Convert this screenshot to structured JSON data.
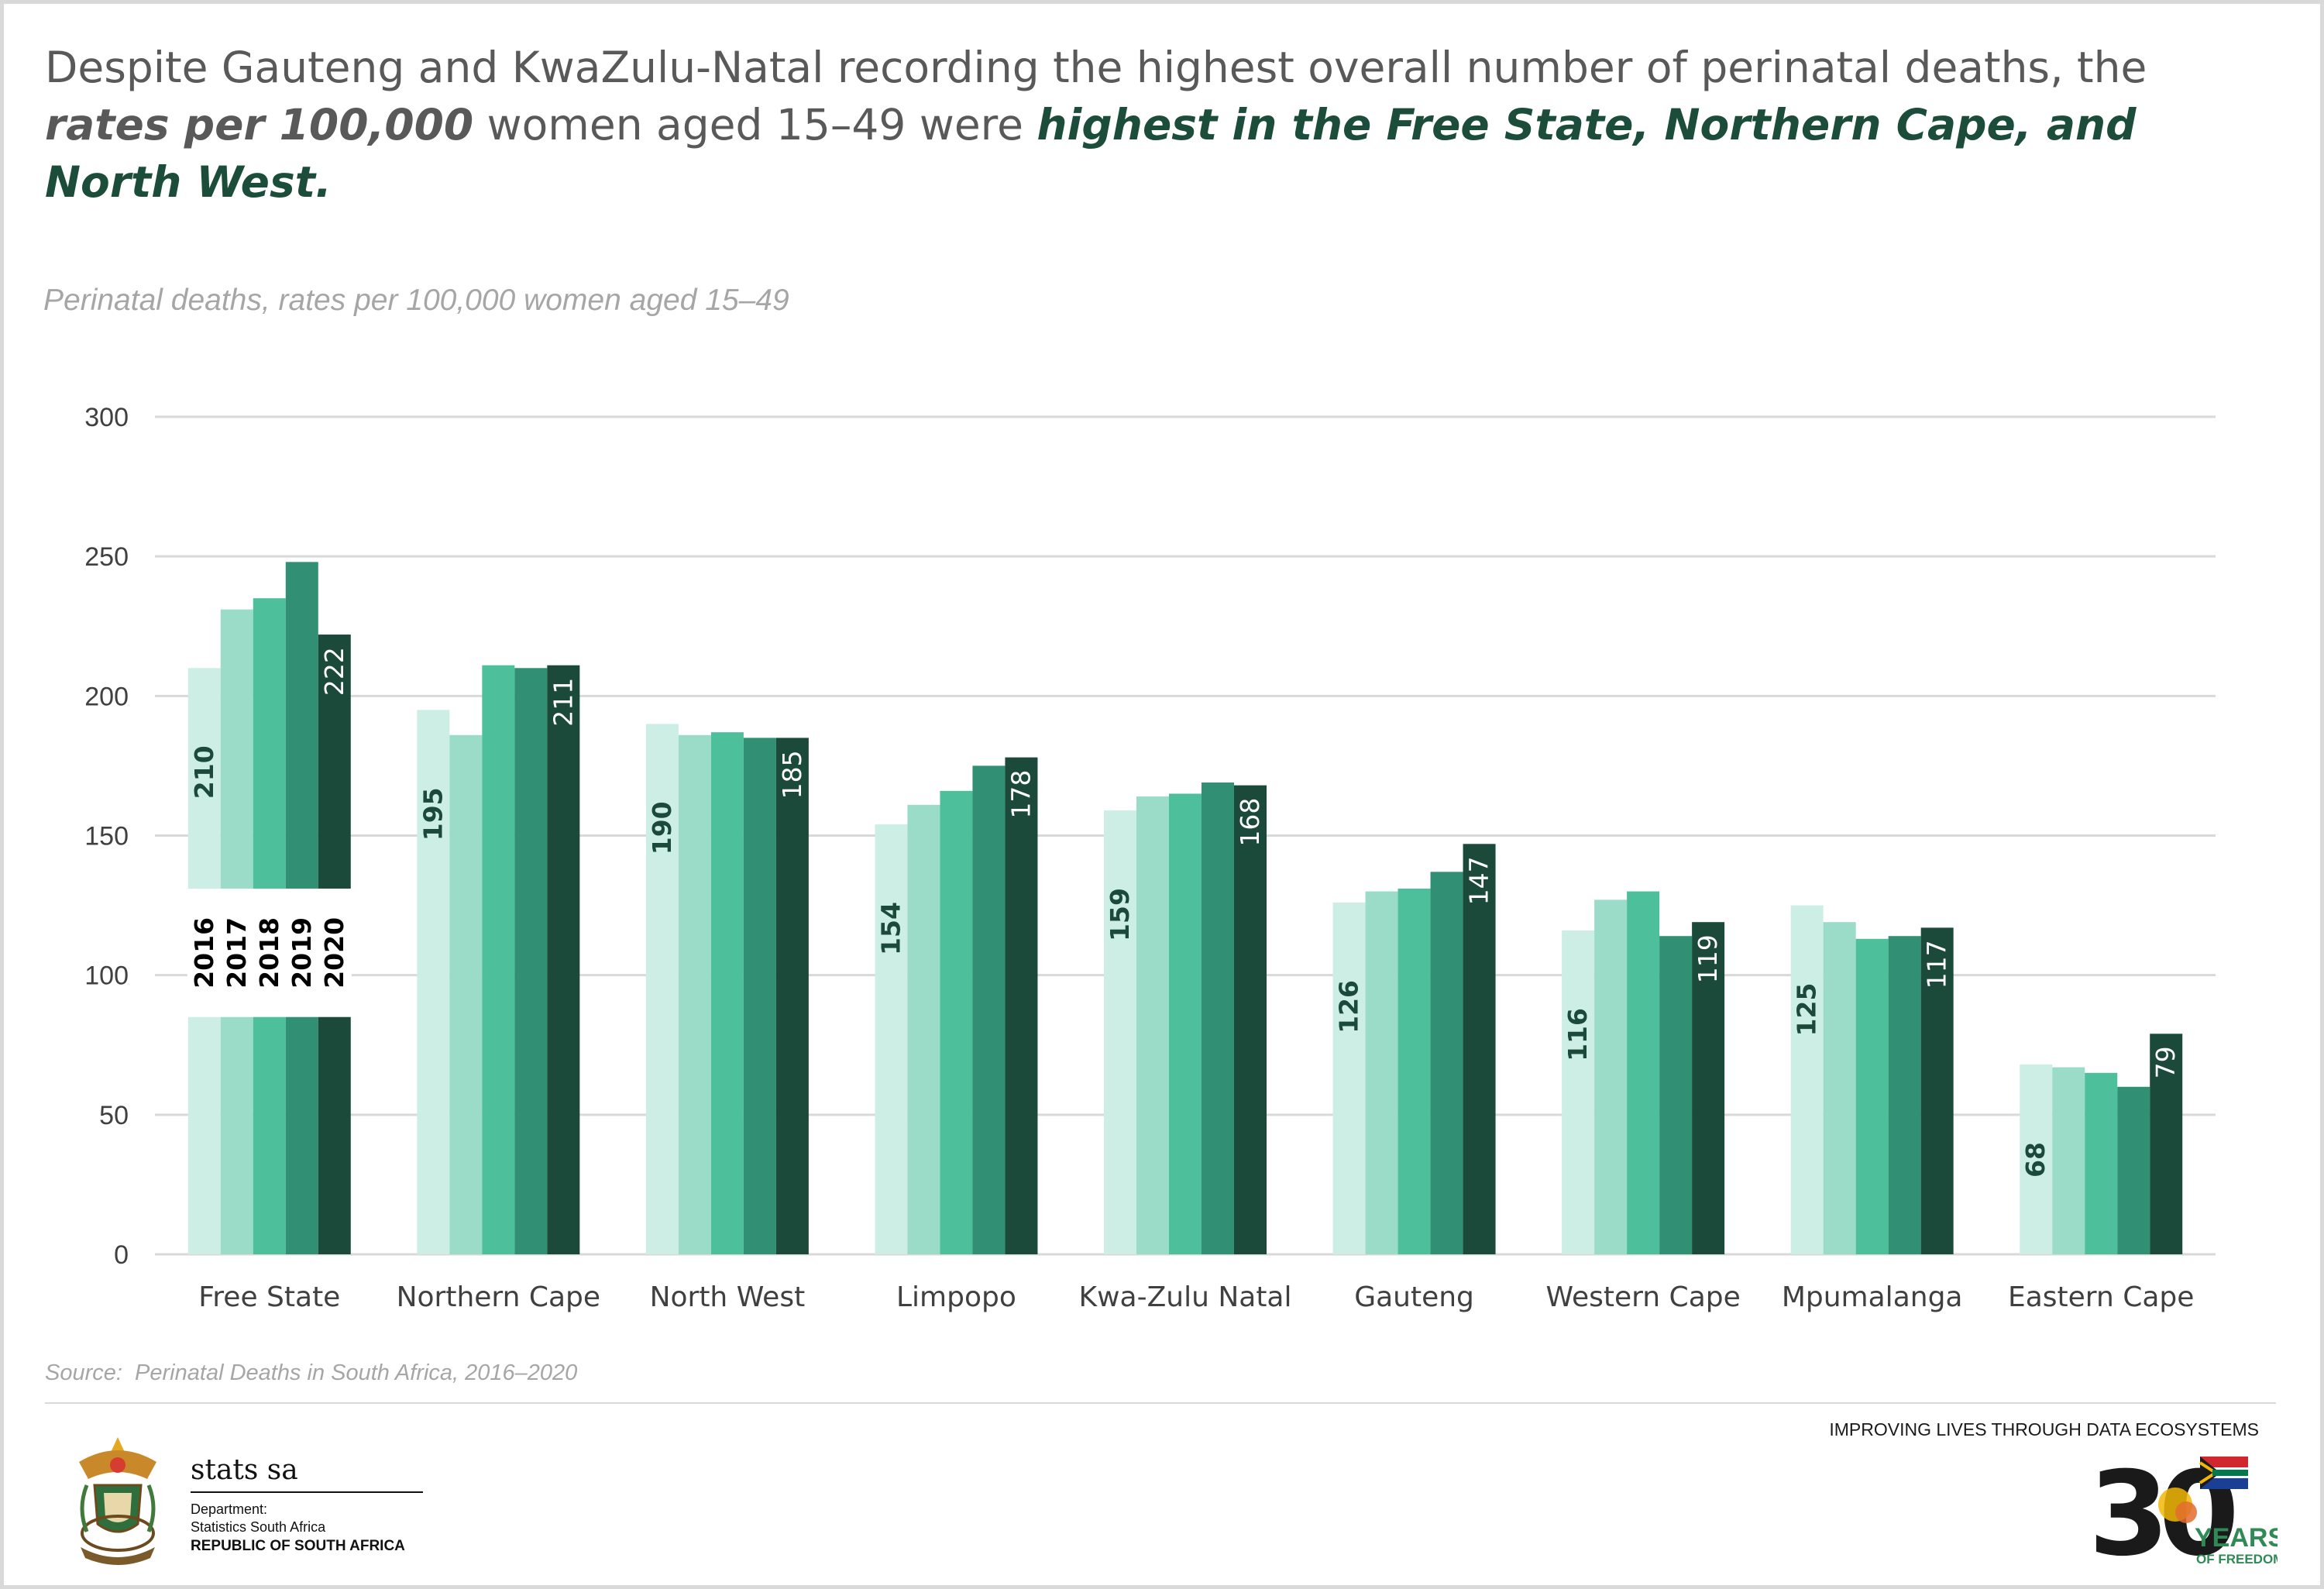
{
  "headline": {
    "part1": "Despite Gauteng and KwaZulu-Natal recording the highest overall number of perinatal deaths, the ",
    "em1": "rates per 100,000",
    "part2": " women aged 15–49 were ",
    "em2": "highest in the Free State, Northern Cape, and North West."
  },
  "subtitle": "Perinatal deaths, rates per 100,000 women aged 15–49",
  "source": "Source:  Perinatal Deaths in South Africa, 2016–2020",
  "tagline": "IMPROVING LIVES THROUGH DATA ECOSYSTEMS",
  "branding": {
    "name": "stats sa",
    "dept_line1": "Department:",
    "dept_line2": "Statistics South Africa",
    "country": "REPUBLIC OF SOUTH AFRICA",
    "anniversary_number": "30",
    "anniversary_word1": "YEARS",
    "anniversary_word2": "OF FREEDOM"
  },
  "colors": {
    "2016": "#cdeee4",
    "2017": "#9adcc8",
    "2018": "#4dbf9b",
    "2019": "#318f74",
    "2020": "#1b4a3b",
    "headline_accent": "#1b4d3a",
    "grid": "#d9d9d9",
    "axis_text": "#404040"
  },
  "chart_data": {
    "type": "bar",
    "title": "Perinatal deaths, rates per 100,000 women aged 15–49",
    "categories": [
      "Free State",
      "Northern Cape",
      "North West",
      "Limpopo",
      "Kwa-Zulu Natal",
      "Gauteng",
      "Western Cape",
      "Mpumalanga",
      "Eastern Cape"
    ],
    "series": [
      {
        "name": "2016",
        "values": [
          210,
          195,
          190,
          154,
          159,
          126,
          116,
          125,
          68
        ]
      },
      {
        "name": "2017",
        "values": [
          231,
          186,
          186,
          161,
          164,
          130,
          127,
          119,
          67
        ]
      },
      {
        "name": "2018",
        "values": [
          235,
          211,
          187,
          166,
          165,
          131,
          130,
          113,
          65
        ]
      },
      {
        "name": "2019",
        "values": [
          248,
          210,
          185,
          175,
          169,
          137,
          114,
          114,
          60
        ]
      },
      {
        "name": "2020",
        "values": [
          222,
          211,
          185,
          178,
          168,
          147,
          119,
          117,
          79
        ]
      }
    ],
    "data_labels": "first and last year of each province",
    "legend": "inside first category group",
    "ylim": [
      0,
      300
    ],
    "yticks": [
      0,
      50,
      100,
      150,
      200,
      250,
      300
    ],
    "grid": true,
    "xlabel": "",
    "ylabel": ""
  }
}
